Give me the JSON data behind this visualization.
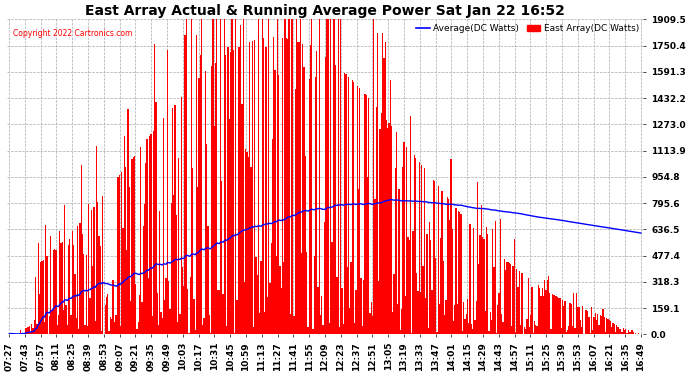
{
  "title": "East Array Actual & Running Average Power Sat Jan 22 16:52",
  "copyright": "Copyright 2022 Cartronics.com",
  "legend_avg": "Average(DC Watts)",
  "legend_east": "East Array(DC Watts)",
  "ymax": 1909.5,
  "yticks": [
    0.0,
    159.1,
    318.3,
    477.4,
    636.5,
    795.6,
    954.8,
    1113.9,
    1273.0,
    1432.2,
    1591.3,
    1750.4,
    1909.5
  ],
  "background_color": "#ffffff",
  "bar_color": "#ff0000",
  "avg_color": "#0000ff",
  "grid_color": "#aaaaaa",
  "title_color": "#000000",
  "copyright_color": "#ff0000",
  "legend_avg_color": "#0000ff",
  "legend_east_color": "#ff0000",
  "tick_label_fontsize": 6.5,
  "title_fontsize": 10
}
